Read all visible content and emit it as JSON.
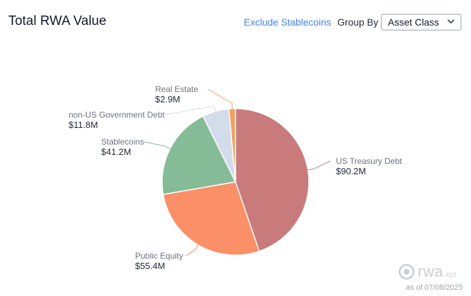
{
  "header": {
    "title": "Total RWA Value",
    "exclude_label": "Exclude Stablecoins",
    "groupby_label": "Group By",
    "groupby_value": "Asset Class"
  },
  "footer": {
    "brand": "rwa",
    "brand_ext": ".xyz",
    "as_of": "as of 07/08/2025"
  },
  "chart_data": {
    "type": "pie",
    "unit": "$M",
    "slices": [
      {
        "label": "US Treasury Debt",
        "value": 90.2,
        "value_label": "$90.2M",
        "color": "#c97b7b"
      },
      {
        "label": "Public Equity",
        "value": 55.4,
        "value_label": "$55.4M",
        "color": "#fb8f67"
      },
      {
        "label": "Stablecoins",
        "value": 41.2,
        "value_label": "$41.2M",
        "color": "#86bb98"
      },
      {
        "label": "non-US Government Debt",
        "value": 11.8,
        "value_label": "$11.8M",
        "color": "#d3dcea"
      },
      {
        "label": "Real Estate",
        "value": 2.9,
        "value_label": "$2.9M",
        "color": "#f3a05e"
      }
    ]
  }
}
